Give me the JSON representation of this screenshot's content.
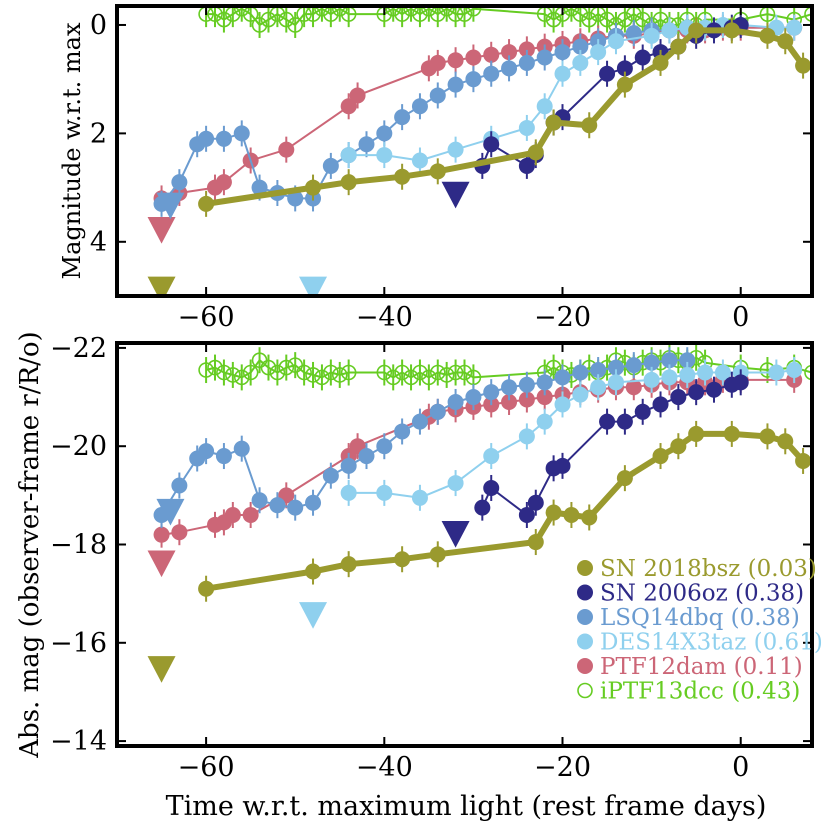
{
  "figure": {
    "xlabel": "Time w.r.t. maximum light (rest frame days)"
  },
  "colors": {
    "SN 2018bsz": "#9a9a2e",
    "SN 2006oz": "#2e2a87",
    "LSQ14dbq": "#6a9bd0",
    "DES14X3taz": "#8fd0ee",
    "PTF12dam": "#cc6677",
    "iPTF13dcc": "#66cc22"
  },
  "chart_data": [
    {
      "type": "scatter",
      "title": "",
      "xlabel": "",
      "ylabel": "Magnitude w.r.t. max",
      "xlim": [
        -70,
        8
      ],
      "ylim": [
        5,
        -0.35
      ],
      "y_inverted": true,
      "xticks": [
        -60,
        -40,
        -20,
        0
      ],
      "yticks": [
        0,
        2,
        4
      ],
      "series": [
        {
          "name": "iPTF13dcc",
          "marker": "open-circle",
          "x": [
            -60,
            -59,
            -58,
            -57,
            -56,
            -55,
            -54,
            -53,
            -52,
            -51,
            -50,
            -49,
            -48,
            -47,
            -46,
            -45,
            -44,
            -40,
            -39,
            -38,
            -37,
            -36,
            -35,
            -34,
            -33,
            -32,
            -31,
            -30,
            -22,
            -21,
            -20,
            -19,
            -18,
            -17,
            -16,
            -15,
            -14,
            -13,
            -12,
            -11,
            -10,
            -9,
            -8,
            -7,
            -6,
            -5,
            -4,
            0,
            3,
            6,
            8
          ],
          "y": [
            -0.2,
            -0.2,
            -0.1,
            -0.2,
            -0.3,
            -0.2,
            0.0,
            -0.1,
            -0.2,
            -0.1,
            0.0,
            -0.2,
            -0.2,
            -0.3,
            -0.2,
            -0.3,
            -0.2,
            -0.2,
            -0.3,
            -0.2,
            -0.3,
            -0.2,
            -0.3,
            -0.2,
            -0.3,
            -0.2,
            -0.2,
            -0.3,
            -0.2,
            -0.1,
            -0.2,
            -0.3,
            -0.2,
            -0.1,
            -0.2,
            -0.1,
            0.0,
            -0.1,
            -0.2,
            -0.1,
            0.0,
            -0.1,
            0.0,
            0.0,
            -0.1,
            0.0,
            -0.1,
            -0.1,
            -0.2,
            -0.1,
            -0.2
          ]
        },
        {
          "name": "PTF12dam",
          "marker": "circle",
          "x": [
            -65,
            -63,
            -59,
            -58,
            -55,
            -51,
            -44,
            -43,
            -35,
            -34,
            -32,
            -30,
            -28,
            -26,
            -24,
            -22,
            -20,
            -18,
            -16,
            -14,
            -12,
            -10,
            -8,
            -6,
            -4,
            -2,
            0,
            6
          ],
          "y": [
            3.2,
            3.1,
            3.0,
            2.9,
            2.5,
            2.3,
            1.5,
            1.3,
            0.8,
            0.7,
            0.65,
            0.6,
            0.55,
            0.5,
            0.45,
            0.4,
            0.35,
            0.3,
            0.25,
            0.2,
            0.2,
            0.15,
            0.1,
            0.1,
            0.1,
            0.05,
            0.05,
            0.05
          ]
        },
        {
          "name": "LSQ14dbq",
          "marker": "circle",
          "x": [
            -65,
            -63,
            -61,
            -60,
            -58,
            -56,
            -54,
            -52,
            -50,
            -48,
            -46,
            -44,
            -42,
            -40,
            -38,
            -36,
            -34,
            -32,
            -30,
            -28,
            -26,
            -24,
            -22,
            -20,
            -18,
            -16,
            -14,
            -12,
            -10,
            -8,
            -6
          ],
          "y": [
            3.3,
            2.9,
            2.2,
            2.1,
            2.1,
            2.0,
            3.0,
            3.1,
            3.2,
            3.2,
            2.6,
            2.4,
            2.2,
            2.0,
            1.7,
            1.5,
            1.3,
            1.1,
            1.0,
            0.9,
            0.8,
            0.7,
            0.6,
            0.5,
            0.4,
            0.3,
            0.2,
            0.15,
            0.1,
            0.1,
            0.05
          ]
        },
        {
          "name": "DES14X3taz",
          "x": [
            -44,
            -40,
            -36,
            -32,
            -28,
            -24,
            -22,
            -20,
            -18,
            -16,
            -14,
            -10,
            -8,
            -6,
            -4,
            -2,
            0,
            4,
            6
          ],
          "marker": "circle",
          "y": [
            2.4,
            2.4,
            2.5,
            2.3,
            2.1,
            1.9,
            1.5,
            0.9,
            0.7,
            0.5,
            0.3,
            0.2,
            0.1,
            0.05,
            0.05,
            0.0,
            0.0,
            0.05,
            0.05
          ]
        },
        {
          "name": "SN 2006oz",
          "marker": "circle",
          "x": [
            -29,
            -28,
            -24,
            -23,
            -21,
            -20,
            -15,
            -13,
            -11,
            -9,
            -7,
            -5,
            -3,
            -1,
            0
          ],
          "y": [
            2.6,
            2.2,
            2.6,
            2.4,
            1.8,
            1.7,
            0.9,
            0.8,
            0.6,
            0.5,
            0.4,
            0.2,
            0.1,
            0.05,
            0.0
          ]
        },
        {
          "name": "SN 2018bsz",
          "marker": "circle",
          "thick": true,
          "x": [
            -60,
            -48,
            -44,
            -38,
            -34,
            -23,
            -21,
            -17,
            -13,
            -9,
            -7,
            -5,
            -1,
            3,
            5,
            7
          ],
          "y": [
            3.3,
            3.0,
            2.9,
            2.8,
            2.7,
            2.35,
            1.8,
            1.85,
            1.1,
            0.7,
            0.4,
            0.1,
            0.1,
            0.2,
            0.3,
            0.75
          ]
        }
      ],
      "upper_limits": [
        {
          "series": "SN 2018bsz",
          "x": -65,
          "y": 4.85
        },
        {
          "series": "PTF12dam",
          "x": -65,
          "y": 3.75
        },
        {
          "series": "LSQ14dbq",
          "x": -64,
          "y": 3.3
        },
        {
          "series": "DES14X3taz",
          "x": -48,
          "y": 4.85
        },
        {
          "series": "SN 2006oz",
          "x": -32,
          "y": 3.1
        }
      ]
    },
    {
      "type": "scatter",
      "title": "",
      "xlabel": "Time w.r.t. maximum light (rest frame days)",
      "ylabel": "Abs. mag (observer-frame r/R/o)",
      "xlim": [
        -70,
        8
      ],
      "ylim": [
        -13.9,
        -22.1
      ],
      "y_inverted": true,
      "xticks": [
        -60,
        -40,
        -20,
        0
      ],
      "yticks": [
        -22,
        -20,
        -18,
        -16,
        -14
      ],
      "legend": {
        "placement": "lower-right",
        "entries": [
          {
            "label": "SN 2018bsz (0.03)",
            "series": "SN 2018bsz"
          },
          {
            "label": "SN 2006oz (0.38)",
            "series": "SN 2006oz"
          },
          {
            "label": "LSQ14dbq (0.38)",
            "series": "LSQ14dbq"
          },
          {
            "label": "DES14X3taz (0.61)",
            "series": "DES14X3taz"
          },
          {
            "label": "PTF12dam (0.11)",
            "series": "PTF12dam"
          },
          {
            "label": "iPTF13dcc (0.43)",
            "series": "iPTF13dcc"
          }
        ]
      },
      "series": [
        {
          "name": "iPTF13dcc",
          "marker": "open-circle",
          "x": [
            -60,
            -59,
            -58,
            -57,
            -56,
            -55,
            -54,
            -53,
            -52,
            -51,
            -50,
            -49,
            -48,
            -47,
            -46,
            -45,
            -44,
            -40,
            -39,
            -38,
            -37,
            -36,
            -35,
            -34,
            -33,
            -32,
            -31,
            -30,
            -22,
            -21,
            -20,
            -19,
            -18,
            -17,
            -16,
            -15,
            -14,
            -13,
            -12,
            -11,
            -10,
            -9,
            -8,
            -7,
            -6,
            -5,
            -4,
            0,
            3,
            6,
            8
          ],
          "y": [
            -21.55,
            -21.6,
            -21.5,
            -21.45,
            -21.4,
            -21.5,
            -21.75,
            -21.6,
            -21.5,
            -21.6,
            -21.65,
            -21.5,
            -21.45,
            -21.4,
            -21.5,
            -21.45,
            -21.5,
            -21.5,
            -21.4,
            -21.5,
            -21.4,
            -21.5,
            -21.4,
            -21.5,
            -21.45,
            -21.5,
            -21.5,
            -21.4,
            -21.5,
            -21.6,
            -21.5,
            -21.45,
            -21.5,
            -21.6,
            -21.5,
            -21.6,
            -21.75,
            -21.7,
            -21.6,
            -21.7,
            -21.75,
            -21.7,
            -21.8,
            -21.75,
            -21.7,
            -21.8,
            -21.7,
            -21.6,
            -21.55,
            -21.6,
            -21.5
          ]
        },
        {
          "name": "PTF12dam",
          "marker": "circle",
          "x": [
            -65,
            -63,
            -59,
            -58,
            -57,
            -55,
            -51,
            -44,
            -43,
            -35,
            -34,
            -32,
            -30,
            -28,
            -26,
            -24,
            -22,
            -20,
            -18,
            -16,
            -14,
            -12,
            -10,
            -8,
            -6,
            -4,
            -2,
            0,
            6
          ],
          "y": [
            -18.2,
            -18.25,
            -18.4,
            -18.45,
            -18.6,
            -18.6,
            -19.0,
            -19.8,
            -20.0,
            -20.6,
            -20.7,
            -20.75,
            -20.8,
            -20.85,
            -20.9,
            -20.95,
            -21.0,
            -21.05,
            -21.1,
            -21.15,
            -21.2,
            -21.2,
            -21.25,
            -21.3,
            -21.3,
            -21.3,
            -21.35,
            -21.35,
            -21.35
          ]
        },
        {
          "name": "LSQ14dbq",
          "marker": "circle",
          "x": [
            -65,
            -63,
            -61,
            -60,
            -58,
            -56,
            -54,
            -52,
            -50,
            -48,
            -46,
            -44,
            -42,
            -40,
            -38,
            -36,
            -34,
            -32,
            -30,
            -28,
            -26,
            -24,
            -22,
            -20,
            -18,
            -16,
            -14,
            -12,
            -10,
            -8,
            -6
          ],
          "y": [
            -18.6,
            -19.2,
            -19.75,
            -19.9,
            -19.8,
            -19.95,
            -18.9,
            -18.8,
            -18.75,
            -18.85,
            -19.4,
            -19.6,
            -19.8,
            -20.0,
            -20.3,
            -20.5,
            -20.7,
            -20.9,
            -21.0,
            -21.1,
            -21.2,
            -21.25,
            -21.3,
            -21.4,
            -21.5,
            -21.55,
            -21.6,
            -21.65,
            -21.7,
            -21.75,
            -21.75
          ]
        },
        {
          "name": "DES14X3taz",
          "marker": "circle",
          "x": [
            -44,
            -40,
            -36,
            -32,
            -28,
            -24,
            -22,
            -20,
            -18,
            -16,
            -14,
            -10,
            -8,
            -6,
            -4,
            -2,
            0,
            4,
            6
          ],
          "y": [
            -19.05,
            -19.05,
            -18.95,
            -19.25,
            -19.8,
            -20.2,
            -20.5,
            -20.85,
            -21.05,
            -21.2,
            -21.3,
            -21.35,
            -21.4,
            -21.45,
            -21.5,
            -21.5,
            -21.5,
            -21.5,
            -21.55
          ]
        },
        {
          "name": "SN 2006oz",
          "marker": "circle",
          "x": [
            -29,
            -28,
            -24,
            -23,
            -21,
            -20,
            -15,
            -13,
            -11,
            -9,
            -7,
            -5,
            -3,
            -1,
            0
          ],
          "y": [
            -18.75,
            -19.15,
            -18.6,
            -18.85,
            -19.55,
            -19.6,
            -20.5,
            -20.5,
            -20.7,
            -20.85,
            -21.0,
            -21.1,
            -21.15,
            -21.25,
            -21.3
          ]
        },
        {
          "name": "SN 2018bsz",
          "marker": "circle",
          "thick": true,
          "x": [
            -60,
            -48,
            -44,
            -38,
            -34,
            -23,
            -21,
            -19,
            -17,
            -13,
            -9,
            -7,
            -5,
            -1,
            3,
            5,
            7
          ],
          "y": [
            -17.1,
            -17.45,
            -17.6,
            -17.7,
            -17.8,
            -18.05,
            -18.65,
            -18.6,
            -18.55,
            -19.35,
            -19.8,
            -20.0,
            -20.25,
            -20.25,
            -20.2,
            -20.1,
            -19.7
          ]
        }
      ],
      "upper_limits": [
        {
          "series": "SN 2018bsz",
          "x": -65,
          "y": -15.5
        },
        {
          "series": "PTF12dam",
          "x": -65,
          "y": -17.65
        },
        {
          "series": "LSQ14dbq",
          "x": -64,
          "y": -18.7
        },
        {
          "series": "DES14X3taz",
          "x": -48,
          "y": -16.6
        },
        {
          "series": "SN 2006oz",
          "x": -32,
          "y": -18.25
        }
      ]
    }
  ]
}
